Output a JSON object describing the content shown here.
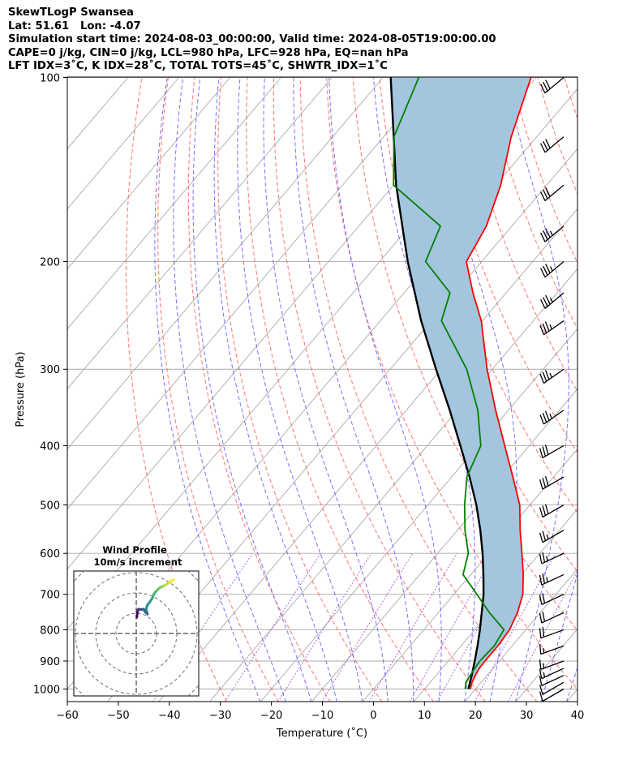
{
  "title_lines": [
    "SkewTLogP Swansea",
    "Lat: 51.61   Lon: -4.07",
    "Simulation start time: 2024-08-03_00:00:00, Valid time: 2024-08-05T19:00:00.00",
    "CAPE=0 j/kg, CIN=0 j/kg, LCL=980 hPa, LFC=928 hPa, EQ=nan hPa",
    "LFT IDX=3˚C, K IDX=28˚C, TOTAL TOTS=45˚C, SHWTR_IDX=1˚C"
  ],
  "chart_data": {
    "type": "line",
    "subtype": "skew-t log-p",
    "xlabel": "Temperature (˚C)",
    "ylabel": "Pressure (hPa)",
    "xlim": [
      -60,
      40
    ],
    "ylim": [
      1050,
      100
    ],
    "y_scale": "log",
    "x_ticks": [
      -60,
      -50,
      -40,
      -30,
      -20,
      -10,
      0,
      10,
      20,
      30,
      40
    ],
    "y_ticks": [
      100,
      200,
      300,
      400,
      500,
      600,
      700,
      800,
      900,
      1000
    ],
    "grid": true,
    "colors": {
      "temperature": "#ff0000",
      "dewpoint": "#008000",
      "parcel": "#000000",
      "cape_fill": "#a3c5de",
      "dry_adiabats": "#ff5a5a",
      "moist_adiabats": "#5a5aff",
      "mixing_ratio": "#9933cc",
      "isotherms": "#aaaaaa"
    },
    "series": [
      {
        "role": "temperature",
        "pressure": [
          1000,
          975,
          950,
          925,
          900,
          850,
          800,
          750,
          700,
          650,
          600,
          550,
          500,
          450,
          400,
          350,
          300,
          250,
          225,
          200,
          175,
          150,
          125,
          100
        ],
        "values": [
          19,
          18.2,
          17.7,
          17.3,
          17.2,
          17.2,
          16.8,
          15.5,
          13.5,
          10.3,
          6.5,
          2.3,
          -2.0,
          -8.0,
          -14.8,
          -22.5,
          -31.0,
          -40.2,
          -46.5,
          -53.0,
          -55.0,
          -59.0,
          -65.0,
          -71.0
        ]
      },
      {
        "role": "dewpoint",
        "pressure": [
          1000,
          975,
          950,
          925,
          900,
          850,
          800,
          750,
          700,
          650,
          600,
          550,
          500,
          450,
          400,
          350,
          300,
          250,
          225,
          200,
          175,
          150,
          125,
          100
        ],
        "values": [
          18,
          17.0,
          16.7,
          16.4,
          16.2,
          16.5,
          15.7,
          10.0,
          4.5,
          -1.5,
          -4.0,
          -8.5,
          -12.8,
          -17.0,
          -19.5,
          -26.0,
          -35.0,
          -48.0,
          -51.0,
          -61.0,
          -64.0,
          -80.0,
          -88.0,
          -93.0
        ]
      },
      {
        "role": "parcel",
        "pressure": [
          1000,
          950,
          900,
          850,
          800,
          750,
          700,
          650,
          600,
          550,
          500,
          450,
          400,
          350,
          300,
          250,
          200,
          150,
          100
        ],
        "values": [
          18.6,
          17.0,
          15.2,
          13.2,
          11.0,
          8.5,
          5.8,
          2.5,
          -1.2,
          -5.5,
          -10.5,
          -16.5,
          -23.5,
          -31.5,
          -41.0,
          -52.0,
          -64.5,
          -79.5,
          -98.5
        ]
      }
    ],
    "wind_barbs": {
      "pressure": [
        1000,
        975,
        950,
        925,
        900,
        850,
        800,
        750,
        700,
        650,
        600,
        550,
        500,
        450,
        400,
        350,
        300,
        250,
        225,
        200,
        175,
        150,
        125,
        100
      ],
      "speed_kt": [
        8,
        10,
        12,
        14,
        15,
        17,
        18,
        20,
        22,
        24,
        25,
        26,
        28,
        30,
        32,
        33,
        34,
        34,
        35,
        35,
        33,
        31,
        30,
        28
      ],
      "direction_deg": [
        240,
        240,
        245,
        245,
        250,
        250,
        250,
        245,
        245,
        245,
        245,
        240,
        240,
        240,
        240,
        235,
        235,
        235,
        230,
        230,
        230,
        230,
        230,
        230
      ]
    },
    "hodograph": {
      "title": "Wind Profile",
      "subtitle": "10m/s increment",
      "ring_step": 10,
      "u": [
        0.3,
        0.5,
        0.8,
        1.0,
        1.5,
        2.3,
        3.5,
        4.5,
        5.5,
        5.2,
        4.8,
        5.5,
        7.0,
        8.0,
        8.5,
        9.5,
        10.5,
        11.5,
        12.5,
        13.5,
        14.5,
        16.0,
        17.5,
        18.5
      ],
      "v": [
        8.0,
        10.0,
        11.5,
        11.8,
        12.0,
        11.8,
        12.0,
        10.5,
        9.5,
        10.8,
        12.0,
        14.0,
        16.0,
        17.5,
        19.0,
        20.5,
        21.5,
        22.5,
        23.0,
        23.5,
        24.0,
        25.0,
        26.0,
        26.5
      ]
    }
  }
}
